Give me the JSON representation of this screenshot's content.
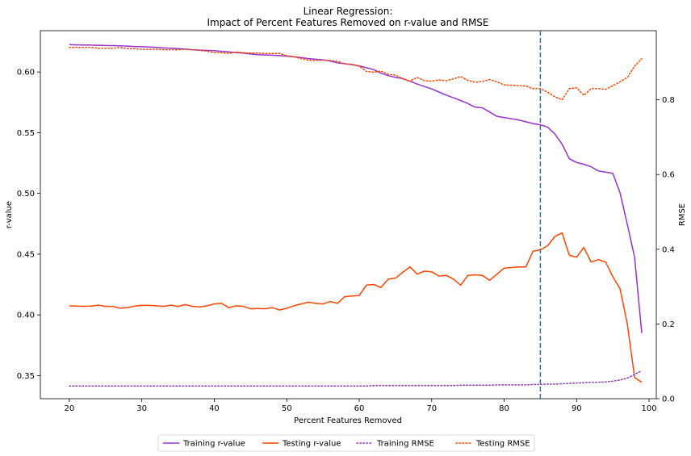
{
  "chart_data": {
    "type": "line",
    "title_line1": "Linear Regression:",
    "title_line2": "Impact of Percent Features Removed on r-value and RMSE",
    "xlabel": "Percent Features Removed",
    "ylabel_left": "r-value",
    "ylabel_right": "RMSE",
    "xlim": [
      16,
      101
    ],
    "ylim_left": [
      0.331,
      0.634
    ],
    "ylim_right": [
      0,
      0.985
    ],
    "xticks": [
      20,
      30,
      40,
      50,
      60,
      70,
      80,
      90,
      100
    ],
    "yticks_left": [
      0.35,
      0.4,
      0.45,
      0.5,
      0.55,
      0.6
    ],
    "ytick_labels_left": [
      "0.35",
      "0.40",
      "0.45",
      "0.50",
      "0.55",
      "0.60"
    ],
    "yticks_right": [
      0.0,
      0.2,
      0.4,
      0.6,
      0.8
    ],
    "ytick_labels_right": [
      "0.0",
      "0.2",
      "0.4",
      "0.6",
      "0.8"
    ],
    "vline_x": 85,
    "legend_position": "bottom-center",
    "colors": {
      "training_r": "#9932cc",
      "testing_r": "#ff4500",
      "vline": "#1f77b4"
    },
    "x": [
      20,
      21,
      22,
      23,
      24,
      25,
      26,
      27,
      28,
      29,
      30,
      31,
      32,
      33,
      34,
      35,
      36,
      37,
      38,
      39,
      40,
      41,
      42,
      43,
      44,
      45,
      46,
      47,
      48,
      49,
      50,
      51,
      52,
      53,
      54,
      55,
      56,
      57,
      58,
      59,
      60,
      61,
      62,
      63,
      64,
      65,
      66,
      67,
      68,
      69,
      70,
      71,
      72,
      73,
      74,
      75,
      76,
      77,
      78,
      79,
      80,
      81,
      82,
      83,
      84,
      85,
      86,
      87,
      88,
      89,
      90,
      91,
      92,
      93,
      94,
      95,
      96,
      97,
      98,
      99
    ],
    "series": [
      {
        "name": "Training r-value",
        "axis": "left",
        "style": "solid",
        "color_key": "training_r",
        "values": [
          0.6225,
          0.6223,
          0.6222,
          0.6221,
          0.622,
          0.6218,
          0.6217,
          0.6215,
          0.6213,
          0.621,
          0.6208,
          0.6205,
          0.6202,
          0.6198,
          0.6195,
          0.6192,
          0.6188,
          0.6183,
          0.618,
          0.6177,
          0.6175,
          0.617,
          0.6165,
          0.616,
          0.6155,
          0.6148,
          0.6142,
          0.614,
          0.6138,
          0.6135,
          0.613,
          0.6125,
          0.6118,
          0.611,
          0.6105,
          0.61,
          0.609,
          0.6075,
          0.6068,
          0.606,
          0.605,
          0.6035,
          0.602,
          0.599,
          0.597,
          0.5955,
          0.5945,
          0.5925,
          0.59,
          0.588,
          0.586,
          0.5835,
          0.581,
          0.5788,
          0.5765,
          0.574,
          0.571,
          0.5705,
          0.567,
          0.5635,
          0.5625,
          0.5615,
          0.5605,
          0.559,
          0.5575,
          0.5565,
          0.5545,
          0.549,
          0.5405,
          0.5285,
          0.5255,
          0.524,
          0.522,
          0.5185,
          0.5175,
          0.5165,
          0.5005,
          0.4745,
          0.4475,
          0.385
        ]
      },
      {
        "name": "Testing r-value",
        "axis": "left",
        "style": "solid",
        "color_key": "testing_r",
        "values": [
          0.4075,
          0.4072,
          0.4071,
          0.4072,
          0.408,
          0.407,
          0.407,
          0.4055,
          0.406,
          0.4072,
          0.4078,
          0.4078,
          0.4075,
          0.407,
          0.408,
          0.407,
          0.4085,
          0.407,
          0.4065,
          0.4075,
          0.409,
          0.4095,
          0.406,
          0.4075,
          0.407,
          0.405,
          0.4052,
          0.405,
          0.406,
          0.404,
          0.4055,
          0.4075,
          0.409,
          0.4105,
          0.4095,
          0.409,
          0.411,
          0.4095,
          0.415,
          0.4155,
          0.416,
          0.4245,
          0.425,
          0.4225,
          0.4295,
          0.4302,
          0.435,
          0.4395,
          0.4335,
          0.436,
          0.4355,
          0.432,
          0.4325,
          0.4295,
          0.4245,
          0.4325,
          0.433,
          0.4325,
          0.4285,
          0.4335,
          0.4385,
          0.439,
          0.4395,
          0.4395,
          0.4525,
          0.4535,
          0.457,
          0.4645,
          0.4675,
          0.449,
          0.4475,
          0.4555,
          0.4435,
          0.4455,
          0.4435,
          0.4315,
          0.4215,
          0.3925,
          0.3485,
          0.3445
        ]
      },
      {
        "name": "Training RMSE",
        "axis": "right",
        "style": "dotted",
        "color_key": "training_r",
        "values": [
          0.034,
          0.034,
          0.034,
          0.034,
          0.034,
          0.034,
          0.034,
          0.034,
          0.034,
          0.034,
          0.034,
          0.034,
          0.034,
          0.034,
          0.034,
          0.034,
          0.034,
          0.034,
          0.034,
          0.034,
          0.034,
          0.034,
          0.034,
          0.034,
          0.034,
          0.034,
          0.034,
          0.034,
          0.034,
          0.034,
          0.034,
          0.034,
          0.034,
          0.034,
          0.034,
          0.034,
          0.034,
          0.034,
          0.034,
          0.034,
          0.034,
          0.034,
          0.035,
          0.035,
          0.035,
          0.035,
          0.035,
          0.035,
          0.035,
          0.035,
          0.035,
          0.035,
          0.035,
          0.035,
          0.036,
          0.036,
          0.036,
          0.036,
          0.036,
          0.037,
          0.037,
          0.037,
          0.037,
          0.037,
          0.038,
          0.038,
          0.039,
          0.039,
          0.04,
          0.041,
          0.042,
          0.043,
          0.044,
          0.044,
          0.045,
          0.047,
          0.05,
          0.055,
          0.065,
          0.075
        ]
      },
      {
        "name": "Testing RMSE",
        "axis": "right",
        "style": "dotted",
        "color_key": "testing_r",
        "values": [
          0.94,
          0.94,
          0.94,
          0.94,
          0.938,
          0.938,
          0.938,
          0.94,
          0.937,
          0.937,
          0.935,
          0.935,
          0.935,
          0.934,
          0.934,
          0.934,
          0.935,
          0.934,
          0.932,
          0.93,
          0.926,
          0.926,
          0.924,
          0.928,
          0.926,
          0.925,
          0.925,
          0.924,
          0.924,
          0.924,
          0.918,
          0.915,
          0.91,
          0.906,
          0.905,
          0.906,
          0.905,
          0.903,
          0.896,
          0.895,
          0.89,
          0.876,
          0.874,
          0.877,
          0.868,
          0.866,
          0.857,
          0.85,
          0.86,
          0.851,
          0.85,
          0.853,
          0.851,
          0.856,
          0.862,
          0.852,
          0.847,
          0.849,
          0.854,
          0.848,
          0.84,
          0.839,
          0.838,
          0.837,
          0.83,
          0.83,
          0.82,
          0.808,
          0.8,
          0.83,
          0.832,
          0.812,
          0.83,
          0.83,
          0.828,
          0.838,
          0.848,
          0.86,
          0.89,
          0.91
        ]
      }
    ]
  }
}
